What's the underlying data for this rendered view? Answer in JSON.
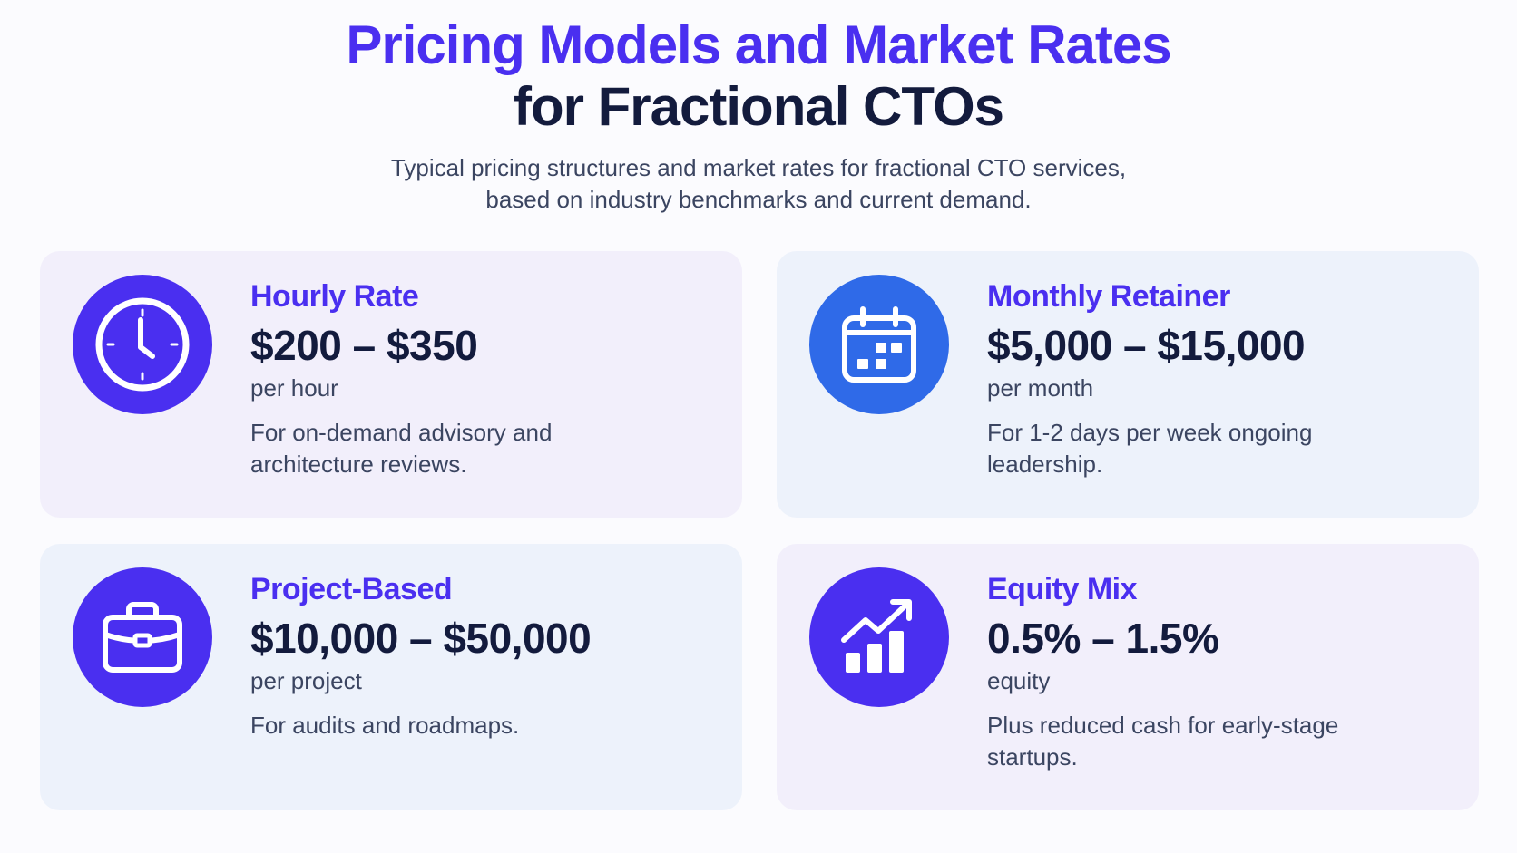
{
  "header": {
    "title_line1": "Pricing Models and Market Rates",
    "title_line2": "for Fractional CTOs",
    "subtitle_line1": "Typical pricing structures and market rates for fractional CTO services,",
    "subtitle_line2": "based on industry benchmarks and current demand."
  },
  "colors": {
    "accent": "#4a2ff0",
    "dark_text": "#131b3d",
    "body_text": "#3b4561",
    "icon_purple": "#4a2ff0",
    "icon_blue": "#2f6ae8",
    "card_lavender": "#f2effb",
    "card_blue": "#edf2fb"
  },
  "cards": [
    {
      "title": "Hourly Rate",
      "price": "$200 – $350",
      "unit": "per hour",
      "desc": "For on-demand advisory and architecture reviews.",
      "icon": "clock-icon"
    },
    {
      "title": "Monthly Retainer",
      "price": "$5,000 – $15,000",
      "unit": "per month",
      "desc": "For 1-2 days per week ongoing leadership.",
      "icon": "calendar-icon"
    },
    {
      "title": "Project-Based",
      "price": "$10,000 – $50,000",
      "unit": "per project",
      "desc": "For audits and roadmaps.",
      "icon": "briefcase-icon"
    },
    {
      "title": "Equity Mix",
      "price": "0.5% – 1.5%",
      "unit": "equity",
      "desc": "Plus reduced cash for early-stage startups.",
      "icon": "growth-chart-icon"
    }
  ]
}
